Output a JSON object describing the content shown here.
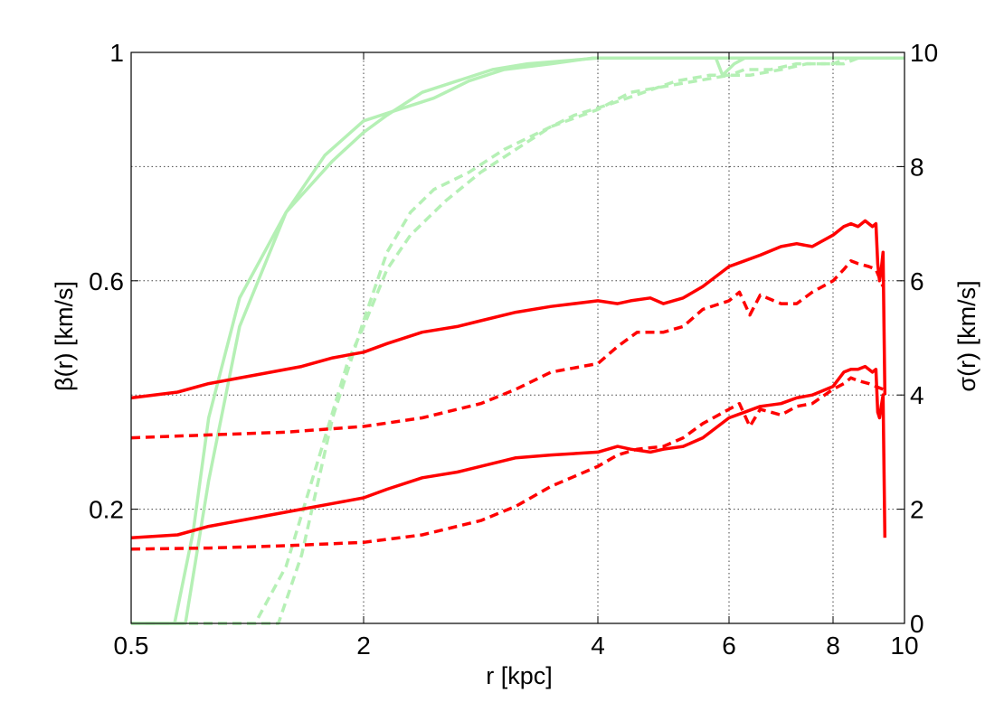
{
  "chart_data": {
    "type": "line",
    "xlabel": "r [kpc]",
    "ylabel_left": "β(r) [km/s]",
    "ylabel_right": "σ(r) [km/s]",
    "x_ticks": [
      {
        "value": 0.5,
        "label": "0.5"
      },
      {
        "value": 2,
        "label": "2"
      },
      {
        "value": 4,
        "label": "4"
      },
      {
        "value": 6,
        "label": "6"
      },
      {
        "value": 8,
        "label": "8"
      },
      {
        "value": 10,
        "label": "10"
      }
    ],
    "y_left_ticks": [
      {
        "value": 1,
        "label": "1"
      },
      {
        "value": 0.6,
        "label": "0.6"
      },
      {
        "value": 0.2,
        "label": "0.2"
      }
    ],
    "y_right_ticks": [
      {
        "value": 10,
        "label": "10"
      },
      {
        "value": 8,
        "label": "8"
      },
      {
        "value": 6,
        "label": "6"
      },
      {
        "value": 4,
        "label": "4"
      },
      {
        "value": 2,
        "label": "2"
      },
      {
        "value": 0,
        "label": "0"
      }
    ],
    "y_left_range": [
      0,
      1
    ],
    "y_right_range": [
      0,
      10
    ],
    "grid": true,
    "colors": {
      "beta": "#b5f0b5",
      "sigma": "#ff0000"
    },
    "beta_series": [
      {
        "style": "solid",
        "x": [
          0.5,
          0.78,
          0.9,
          1.0,
          1.2,
          1.5,
          1.8,
          2.0,
          2.2,
          2.5,
          2.8,
          3.1,
          3.4,
          4.0,
          4.8,
          5.6,
          6.3,
          7.2,
          8.4,
          9.4,
          10.0
        ],
        "y": [
          0.0,
          0.0,
          0.16,
          0.36,
          0.57,
          0.72,
          0.81,
          0.86,
          0.89,
          0.93,
          0.95,
          0.97,
          0.98,
          0.99,
          0.99,
          0.99,
          0.99,
          0.99,
          0.99,
          0.99,
          0.99
        ]
      },
      {
        "style": "solid",
        "x": [
          0.5,
          0.85,
          1.0,
          1.2,
          1.5,
          1.75,
          2.0,
          2.3,
          2.6,
          2.9,
          3.2,
          3.6,
          3.95,
          4.3,
          5.0,
          5.8,
          5.9,
          6.1,
          6.3,
          6.6,
          7.0,
          8.0,
          9.0,
          10.0
        ],
        "y": [
          0.0,
          0.0,
          0.25,
          0.52,
          0.72,
          0.82,
          0.88,
          0.9,
          0.92,
          0.95,
          0.97,
          0.98,
          0.99,
          0.99,
          0.99,
          0.99,
          0.96,
          0.98,
          0.99,
          0.99,
          0.99,
          0.99,
          0.99,
          0.99
        ]
      },
      {
        "style": "dashed",
        "x": [
          0.5,
          1.3,
          1.5,
          1.7,
          1.9,
          2.0,
          2.2,
          2.4,
          2.7,
          3.0,
          3.3,
          3.6,
          4.0,
          4.5,
          5.0,
          5.5,
          6.0,
          6.4,
          7.0,
          7.5,
          8.0,
          8.4,
          8.7,
          9.0,
          9.3,
          9.6,
          10.0
        ],
        "y": [
          0.0,
          0.0,
          0.1,
          0.28,
          0.46,
          0.52,
          0.62,
          0.68,
          0.74,
          0.79,
          0.83,
          0.87,
          0.9,
          0.93,
          0.94,
          0.95,
          0.96,
          0.96,
          0.97,
          0.98,
          0.98,
          0.99,
          0.99,
          0.99,
          0.99,
          0.99,
          0.99
        ]
      },
      {
        "style": "dashed",
        "x": [
          0.5,
          1.45,
          1.6,
          1.8,
          2.0,
          2.2,
          2.4,
          2.6,
          2.9,
          3.2,
          3.5,
          3.8,
          4.2,
          4.7,
          5.2,
          5.7,
          6.0,
          6.3,
          6.8,
          7.3,
          7.8,
          8.3,
          8.7,
          9.0,
          9.4,
          10.0
        ],
        "y": [
          0.0,
          0.0,
          0.12,
          0.36,
          0.53,
          0.65,
          0.72,
          0.76,
          0.79,
          0.83,
          0.86,
          0.89,
          0.91,
          0.93,
          0.95,
          0.96,
          0.96,
          0.97,
          0.97,
          0.98,
          0.98,
          0.98,
          0.99,
          0.99,
          0.99,
          0.99
        ]
      }
    ],
    "sigma_series": [
      {
        "style": "solid",
        "x": [
          0.5,
          0.8,
          1.0,
          1.3,
          1.6,
          1.8,
          2.0,
          2.2,
          2.5,
          2.8,
          3.0,
          3.3,
          3.6,
          4.0,
          4.3,
          4.5,
          4.8,
          5.0,
          5.3,
          5.6,
          6.0,
          6.3,
          6.6,
          7.0,
          7.3,
          7.6,
          8.0,
          8.3,
          8.5,
          8.7,
          8.9,
          9.1,
          9.2,
          9.25,
          9.3,
          9.35,
          9.4,
          9.45
        ],
        "y": [
          3.95,
          4.05,
          4.2,
          4.35,
          4.5,
          4.65,
          4.75,
          4.9,
          5.1,
          5.2,
          5.3,
          5.45,
          5.55,
          5.65,
          5.6,
          5.65,
          5.7,
          5.6,
          5.7,
          5.9,
          6.25,
          6.35,
          6.45,
          6.6,
          6.65,
          6.6,
          6.8,
          6.95,
          7.0,
          6.95,
          7.05,
          6.95,
          7.0,
          6.3,
          6.0,
          6.2,
          6.5,
          4.0
        ]
      },
      {
        "style": "dashed",
        "x": [
          0.5,
          1.0,
          1.5,
          2.0,
          2.5,
          3.0,
          3.3,
          3.6,
          4.0,
          4.3,
          4.6,
          5.0,
          5.3,
          5.6,
          6.0,
          6.2,
          6.4,
          6.6,
          7.0,
          7.3,
          7.6,
          8.0,
          8.3,
          8.5,
          8.7,
          9.0,
          9.2,
          9.4
        ],
        "y": [
          3.25,
          3.3,
          3.35,
          3.45,
          3.6,
          3.85,
          4.1,
          4.4,
          4.55,
          4.85,
          5.1,
          5.1,
          5.2,
          5.5,
          5.65,
          5.8,
          5.4,
          5.75,
          5.6,
          5.6,
          5.8,
          6.0,
          6.2,
          6.35,
          6.3,
          6.25,
          6.2,
          5.9
        ]
      },
      {
        "style": "solid",
        "x": [
          0.5,
          0.8,
          1.0,
          1.3,
          1.6,
          1.8,
          2.0,
          2.2,
          2.5,
          2.8,
          3.0,
          3.3,
          3.6,
          4.0,
          4.3,
          4.5,
          4.8,
          5.0,
          5.3,
          5.6,
          6.0,
          6.3,
          6.6,
          7.0,
          7.3,
          7.6,
          8.0,
          8.3,
          8.5,
          8.7,
          8.9,
          9.1,
          9.2,
          9.25,
          9.3,
          9.35,
          9.4,
          9.45
        ],
        "y": [
          1.5,
          1.55,
          1.7,
          1.85,
          2.0,
          2.1,
          2.2,
          2.35,
          2.55,
          2.65,
          2.75,
          2.9,
          2.95,
          3.0,
          3.1,
          3.05,
          3.0,
          3.05,
          3.1,
          3.25,
          3.6,
          3.7,
          3.8,
          3.85,
          3.95,
          4.0,
          4.15,
          4.4,
          4.45,
          4.45,
          4.5,
          4.4,
          4.45,
          3.7,
          3.6,
          3.8,
          4.0,
          1.5
        ]
      },
      {
        "style": "dashed",
        "x": [
          0.5,
          1.0,
          1.5,
          2.0,
          2.5,
          3.0,
          3.3,
          3.6,
          4.0,
          4.3,
          4.6,
          5.0,
          5.3,
          5.6,
          6.0,
          6.2,
          6.4,
          6.6,
          7.0,
          7.3,
          7.6,
          8.0,
          8.3,
          8.5,
          8.7,
          9.0,
          9.2,
          9.4
        ],
        "y": [
          1.3,
          1.32,
          1.36,
          1.42,
          1.55,
          1.8,
          2.05,
          2.4,
          2.75,
          2.95,
          3.05,
          3.1,
          3.25,
          3.5,
          3.75,
          3.85,
          3.45,
          3.75,
          3.65,
          3.8,
          3.85,
          4.1,
          4.2,
          4.3,
          4.25,
          4.2,
          4.15,
          4.1
        ]
      }
    ]
  }
}
